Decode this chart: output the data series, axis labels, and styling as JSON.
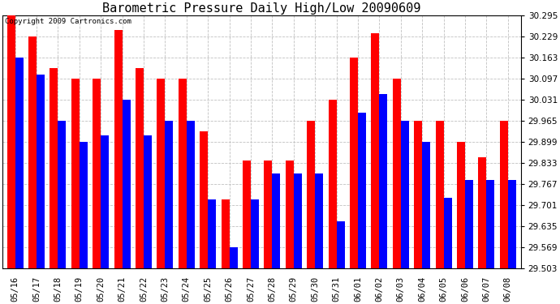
{
  "title": "Barometric Pressure Daily High/Low 20090609",
  "copyright": "Copyright 2009 Cartronics.com",
  "dates": [
    "05/16",
    "05/17",
    "05/18",
    "05/19",
    "05/20",
    "05/21",
    "05/22",
    "05/23",
    "05/24",
    "05/25",
    "05/26",
    "05/27",
    "05/28",
    "05/29",
    "05/30",
    "05/31",
    "06/01",
    "06/02",
    "06/03",
    "06/04",
    "06/05",
    "06/06",
    "06/07",
    "06/08"
  ],
  "highs": [
    30.295,
    30.229,
    30.131,
    30.097,
    30.097,
    30.25,
    30.131,
    30.097,
    30.097,
    29.933,
    29.72,
    29.84,
    29.84,
    29.84,
    29.965,
    30.031,
    30.163,
    30.24,
    30.097,
    29.965,
    29.965,
    29.899,
    29.85,
    29.965
  ],
  "lows": [
    30.163,
    30.109,
    29.965,
    29.899,
    29.92,
    30.031,
    29.92,
    29.965,
    29.965,
    29.72,
    29.569,
    29.72,
    29.8,
    29.8,
    29.8,
    29.65,
    29.99,
    30.05,
    29.965,
    29.899,
    29.725,
    29.78,
    29.78,
    29.78
  ],
  "high_color": "#ff0000",
  "low_color": "#0000ff",
  "bg_color": "#ffffff",
  "grid_color": "#c0c0c0",
  "ymin": 29.503,
  "ymax": 30.295,
  "yticks": [
    29.503,
    29.569,
    29.635,
    29.701,
    29.767,
    29.833,
    29.899,
    29.965,
    30.031,
    30.097,
    30.163,
    30.229,
    30.295
  ],
  "bar_width": 0.38,
  "title_fontsize": 11,
  "tick_fontsize": 7.5,
  "copyright_fontsize": 6.5
}
